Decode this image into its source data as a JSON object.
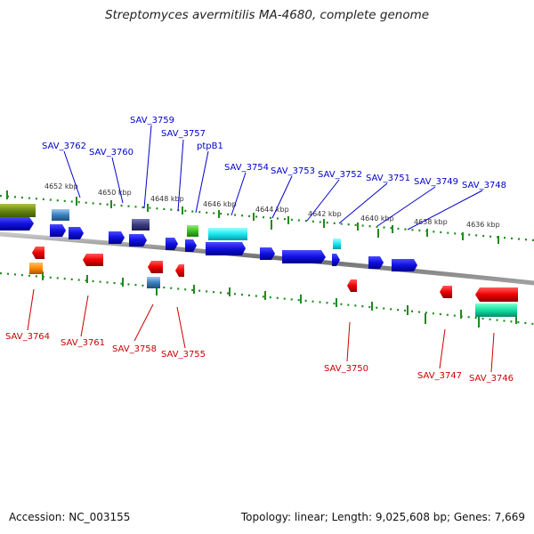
{
  "title": "Streptomyces avermitilis MA-4680, complete genome",
  "footer": {
    "accession": "Accession: NC_003155",
    "topology": "Topology: linear; Length: 9,025,608 bp; Genes: 7,669"
  },
  "colors": {
    "forward_label": "#0000cc",
    "reverse_label": "#cc0000",
    "ruler_tick": "#1f8a1f",
    "backbone": "#808080"
  },
  "ruler_labels": [
    "4652 kbp",
    "4650 kbp",
    "4648 kbp",
    "4646 kbp",
    "4644 kbp",
    "4642 kbp",
    "4640 kbp",
    "4638 kbp",
    "4636 kbp"
  ],
  "forward_genes": [
    "SAV_3762",
    "SAV_3760",
    "SAV_3759",
    "SAV_3757",
    "ptpB1",
    "SAV_3754",
    "SAV_3753",
    "SAV_3752",
    "SAV_3751",
    "SAV_3749",
    "SAV_3748"
  ],
  "reverse_genes": [
    "SAV_3764",
    "SAV_3761",
    "SAV_3758",
    "SAV_3755",
    "SAV_3750",
    "SAV_3747",
    "SAV_3746"
  ]
}
